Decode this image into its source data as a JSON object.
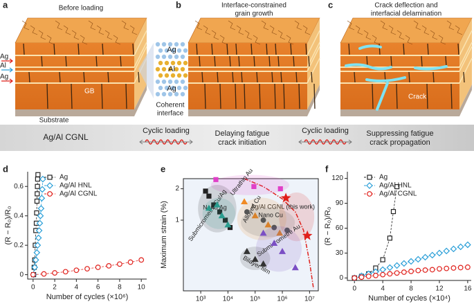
{
  "diagram": {
    "panels": [
      {
        "letter": "a",
        "title": [
          "Before loading"
        ]
      },
      {
        "letter": "b",
        "title": [
          "Interface-constrained",
          "grain growth"
        ]
      },
      {
        "letter": "c",
        "title": [
          "Crack deflection and",
          "interfacial delamination"
        ]
      }
    ],
    "layer_labels": [
      "Ag",
      "Al",
      "Ag"
    ],
    "gb_label": "GB",
    "substrate_label": "Substrate",
    "inset_labels": [
      "Ag",
      "Al",
      "Ag"
    ],
    "inset_caption": [
      "Coherent",
      "interface"
    ],
    "crack_label": "Crack",
    "banner": {
      "material": "Ag/Al CGNL",
      "loading_1": "Cyclic loading",
      "effect_1": [
        "Delaying fatigue",
        "crack initiation"
      ],
      "loading_2": "Cyclic loading",
      "effect_2": [
        "Suppressing fatigue",
        "crack propagation"
      ]
    }
  },
  "chart_data": [
    {
      "type": "scatter",
      "letter": "d",
      "xlabel": "Number of cycles (×10⁶)",
      "ylabel": "(R − R₀)/R₀",
      "xlim": [
        -0.5,
        10.5
      ],
      "ylim": [
        -0.03,
        0.7
      ],
      "xticks": [
        0,
        2,
        4,
        6,
        8,
        10
      ],
      "yticks": [
        0,
        0.2,
        0.4,
        0.6
      ],
      "legend": "upper left",
      "series": [
        {
          "name": "Ag",
          "color": "#222222",
          "marker": "square",
          "x": [
            0.05,
            0.1,
            0.15,
            0.2,
            0.25,
            0.3,
            0.33,
            0.36,
            0.38,
            0.4,
            0.42,
            0.45
          ],
          "values": [
            0,
            0.05,
            0.1,
            0.2,
            0.3,
            0.35,
            0.42,
            0.5,
            0.55,
            0.6,
            0.65,
            0.68
          ]
        },
        {
          "name": "Ag/Al HNL",
          "color": "#2a9fd8",
          "marker": "diamond",
          "x": [
            0.05,
            0.15,
            0.25,
            0.35,
            0.42,
            0.5,
            0.56,
            0.62,
            0.68,
            0.74,
            0.8,
            0.85,
            0.9
          ],
          "values": [
            0,
            0.05,
            0.1,
            0.15,
            0.2,
            0.25,
            0.3,
            0.35,
            0.4,
            0.45,
            0.52,
            0.58,
            0.65
          ]
        },
        {
          "name": "Ag/Al CGNL",
          "color": "#e0201b",
          "marker": "circle",
          "x": [
            0,
            1,
            2,
            3,
            4,
            5,
            6,
            7,
            8,
            9,
            10
          ],
          "values": [
            0,
            0.005,
            0.012,
            0.02,
            0.03,
            0.04,
            0.05,
            0.06,
            0.072,
            0.085,
            0.1
          ]
        }
      ]
    },
    {
      "type": "scatter",
      "letter": "e",
      "xlabel": "Number of cycles to failure",
      "ylabel": "Maximum strain (%)",
      "xlog": true,
      "ylog": true,
      "xlim": [
        230,
        21000000
      ],
      "ylim": [
        0.21,
        2.5
      ],
      "xticks": [
        {
          "value": 1000,
          "label": "10³"
        },
        {
          "value": 10000,
          "label": "10⁴"
        },
        {
          "value": 100000,
          "label": "10⁵"
        },
        {
          "value": 1000000,
          "label": "10⁶"
        },
        {
          "value": 10000000,
          "label": "10⁷"
        }
      ],
      "yticks": [
        1,
        2
      ],
      "limit_curve": {
        "color": "#e0201b",
        "x": [
          40000,
          200000,
          1000000,
          3000000,
          6000000,
          10000000,
          14000000
        ],
        "values": [
          2.5,
          2.1,
          1.6,
          1.2,
          0.8,
          0.4,
          0.22
        ]
      },
      "series": [
        {
          "name": "Ultrathin Au",
          "color": "#e040c8",
          "marker": "square",
          "x": [
            3600,
            90000,
            850000
          ],
          "values": [
            2.45,
            2.1,
            2.0
          ]
        },
        {
          "name": "Ag/Al CGNL (this work)",
          "color": "#e0201b",
          "marker": "star",
          "x": [
            1350000,
            8300000
          ],
          "values": [
            1.63,
            0.71
          ]
        },
        {
          "name": "Submicrometre Cu/Ag",
          "color": "#222222",
          "marker": "square",
          "x": [
            1500,
            2000,
            3000,
            5000,
            8000,
            12000
          ],
          "values": [
            1.9,
            1.7,
            1.4,
            1.2,
            1.0,
            0.85
          ]
        },
        {
          "name": "Nano Ag",
          "color": "#2a9d8f",
          "marker": "triangle",
          "x": [
            2000,
            4000,
            6000,
            10000
          ],
          "values": [
            1.3,
            1.4,
            1.1,
            0.9
          ]
        },
        {
          "name": "Alloyed Cu",
          "color": "#f08a24",
          "marker": "triangle",
          "x": [
            40000,
            100000,
            300000,
            800000
          ],
          "values": [
            1.5,
            1.1,
            0.9,
            0.75
          ]
        },
        {
          "name": "Nano Cu",
          "color": "#555555",
          "marker": "circle",
          "x": [
            50000,
            200000,
            500000,
            1500000
          ],
          "values": [
            1.2,
            1.0,
            0.85,
            0.8
          ]
        },
        {
          "name": "Submicrometre Au",
          "color": "#7b4fc4",
          "marker": "triangle",
          "x": [
            200000,
            500000,
            1000000,
            3000000
          ],
          "values": [
            0.75,
            0.6,
            0.5,
            0.35
          ]
        },
        {
          "name": "Bilayer film",
          "color": "#333333",
          "marker": "triangle",
          "x": [
            50000,
            100000,
            200000
          ],
          "values": [
            0.5,
            0.42,
            0.38
          ]
        }
      ]
    },
    {
      "type": "scatter",
      "letter": "f",
      "xlabel": "Number of cycles (×10⁴)",
      "ylabel": "(R − R₀)/R₀",
      "xlim": [
        -1,
        16.5
      ],
      "ylim": [
        -3,
        128
      ],
      "xticks": [
        0,
        4,
        8,
        12,
        16
      ],
      "yticks": [
        0,
        30,
        60,
        90,
        120
      ],
      "legend": "upper left",
      "series": [
        {
          "name": "Ag",
          "color": "#222222",
          "marker": "square",
          "x": [
            0,
            1,
            2,
            3,
            4,
            5,
            5.5,
            6
          ],
          "values": [
            0,
            2,
            5,
            12,
            22,
            48,
            80,
            110
          ]
        },
        {
          "name": "Ag/Al HNL",
          "color": "#2a9fd8",
          "marker": "diamond",
          "x": [
            0,
            1,
            2,
            3,
            4,
            5,
            6,
            7,
            8,
            9,
            10,
            11,
            12,
            13,
            14,
            15,
            16
          ],
          "values": [
            0,
            2.5,
            5,
            7.5,
            10,
            12.5,
            15,
            17.5,
            20,
            22.5,
            25,
            27.5,
            30,
            32.5,
            35,
            37.5,
            40
          ]
        },
        {
          "name": "Ag/Al CGNL",
          "color": "#e0201b",
          "marker": "circle",
          "x": [
            0,
            1,
            2,
            3,
            4,
            5,
            6,
            7,
            8,
            9,
            10,
            11,
            12,
            13,
            14,
            15,
            16
          ],
          "values": [
            0,
            1,
            2,
            3,
            4,
            5,
            6,
            7,
            8,
            9,
            9.5,
            10,
            11,
            11.5,
            12,
            12.5,
            13
          ]
        }
      ]
    }
  ]
}
